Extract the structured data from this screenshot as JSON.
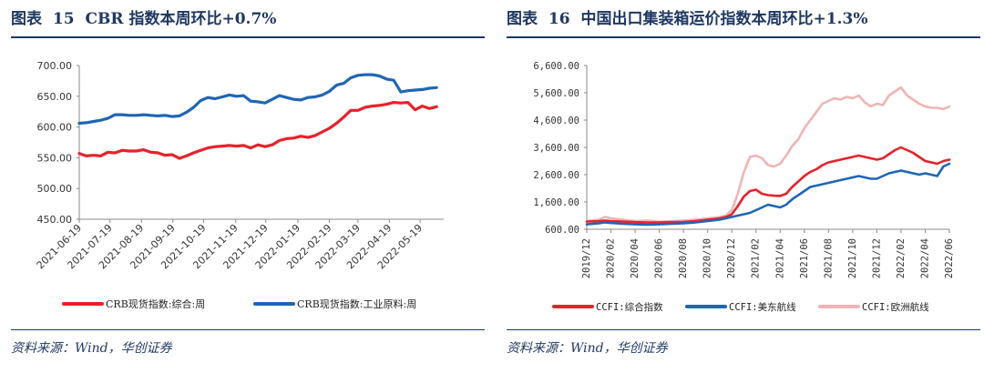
{
  "left": {
    "fig_label": "图表",
    "fig_num": "15",
    "title": "CBR 指数本周环比+0.7%",
    "source": "资料来源：Wind，华创证券",
    "chart_data": {
      "type": "line",
      "ylim": [
        450,
        700
      ],
      "yticks": [
        "450.00",
        "500.00",
        "550.00",
        "600.00",
        "650.00",
        "700.00"
      ],
      "xlim": [
        0,
        51
      ],
      "xticks": [
        {
          "label": "2021-06-19",
          "x": 0
        },
        {
          "label": "2021-07-19",
          "x": 4.3
        },
        {
          "label": "2021-08-19",
          "x": 8.7
        },
        {
          "label": "2021-09-19",
          "x": 13.1
        },
        {
          "label": "2021-10-19",
          "x": 17.4
        },
        {
          "label": "2021-11-19",
          "x": 21.9
        },
        {
          "label": "2021-12-19",
          "x": 26.1
        },
        {
          "label": "2022-01-19",
          "x": 30.6
        },
        {
          "label": "2022-02-19",
          "x": 35
        },
        {
          "label": "2022-03-19",
          "x": 39
        },
        {
          "label": "2022-04-19",
          "x": 43.4
        },
        {
          "label": "2022-05-19",
          "x": 47.7
        }
      ],
      "series": [
        {
          "name": "CRB现货指数:综合:周",
          "color": "#e8212a",
          "values": [
            557,
            553,
            554,
            553,
            559,
            558,
            562,
            561,
            561,
            563,
            559,
            558,
            554,
            555,
            549,
            553,
            558,
            562,
            566,
            568,
            569,
            570,
            569,
            570,
            566,
            571,
            568,
            571,
            578,
            581,
            582,
            585,
            583,
            586,
            592,
            598,
            606,
            616,
            627,
            627,
            632,
            634,
            635,
            637,
            640,
            639,
            640,
            628,
            634,
            630,
            633
          ]
        },
        {
          "name": "CRB现货指数:工业原料:周",
          "color": "#1f66b5",
          "values": [
            606,
            607,
            609,
            611,
            614,
            620,
            620,
            619,
            619,
            620,
            619,
            618,
            619,
            617,
            618,
            624,
            632,
            643,
            648,
            646,
            649,
            652,
            650,
            651,
            642,
            641,
            639,
            645,
            651,
            648,
            645,
            644,
            648,
            649,
            652,
            658,
            668,
            671,
            680,
            684,
            685,
            685,
            683,
            678,
            676,
            657,
            659,
            660,
            661,
            663,
            664
          ]
        }
      ]
    },
    "legend": [
      {
        "label": "CRB现货指数:综合:周",
        "color": "#e8212a"
      },
      {
        "label": "CRB现货指数:工业原料:周",
        "color": "#1f66b5"
      }
    ]
  },
  "right": {
    "fig_label": "图表",
    "fig_num": "16",
    "title": "中国出口集装箱运价指数本周环比+1.3%",
    "source": "资料来源：Wind，华创证券",
    "chart_data": {
      "type": "line",
      "ylim": [
        600,
        6600
      ],
      "yticks": [
        "600.00",
        "1,600.00",
        "2,600.00",
        "3,600.00",
        "4,600.00",
        "5,600.00",
        "6,600.00"
      ],
      "xlim": [
        0,
        30
      ],
      "xticks": [
        {
          "label": "2019/12",
          "x": 0
        },
        {
          "label": "2020/02",
          "x": 2
        },
        {
          "label": "2020/04",
          "x": 4
        },
        {
          "label": "2020/06",
          "x": 6
        },
        {
          "label": "2020/08",
          "x": 8
        },
        {
          "label": "2020/10",
          "x": 10
        },
        {
          "label": "2020/12",
          "x": 12
        },
        {
          "label": "2021/02",
          "x": 14
        },
        {
          "label": "2021/04",
          "x": 16
        },
        {
          "label": "2021/06",
          "x": 18
        },
        {
          "label": "2021/08",
          "x": 20
        },
        {
          "label": "2021/10",
          "x": 22
        },
        {
          "label": "2021/12",
          "x": 24
        },
        {
          "label": "2022/02",
          "x": 26
        },
        {
          "label": "2022/04",
          "x": 28
        },
        {
          "label": "2022/06",
          "x": 30
        }
      ],
      "series": [
        {
          "name": "CCFI:欧洲航线",
          "color": "#f0b4b4",
          "x": [
            0,
            1,
            1.5,
            2,
            3,
            4,
            5,
            6,
            7,
            8,
            9,
            10,
            11,
            11.5,
            12,
            12.5,
            13,
            13.5,
            14,
            14.5,
            15,
            15.5,
            16,
            16.5,
            17,
            17.5,
            18,
            18.5,
            19,
            19.5,
            20,
            20.5,
            21,
            21.5,
            22,
            22.5,
            23,
            23.5,
            24,
            24.5,
            25,
            25.5,
            26,
            26.5,
            27,
            27.5,
            28,
            28.5,
            29,
            29.5,
            30
          ],
          "values": [
            900,
            950,
            1050,
            1000,
            950,
            900,
            920,
            880,
            900,
            920,
            950,
            1000,
            1050,
            1100,
            1300,
            1900,
            2700,
            3250,
            3300,
            3200,
            2950,
            2900,
            3000,
            3300,
            3650,
            3900,
            4300,
            4600,
            4900,
            5200,
            5300,
            5400,
            5350,
            5450,
            5400,
            5500,
            5250,
            5100,
            5200,
            5150,
            5500,
            5650,
            5800,
            5500,
            5350,
            5200,
            5100,
            5050,
            5050,
            5000,
            5100
          ]
        },
        {
          "name": "CCFI:综合指数",
          "color": "#e8212a",
          "x": [
            0,
            1,
            1.5,
            2,
            3,
            4,
            5,
            6,
            7,
            8,
            9,
            10,
            11,
            11.5,
            12,
            12.5,
            13,
            13.5,
            14,
            14.5,
            15,
            15.5,
            16,
            16.5,
            17,
            17.5,
            18,
            18.5,
            19,
            19.5,
            20,
            20.5,
            21,
            21.5,
            22,
            22.5,
            23,
            23.5,
            24,
            24.5,
            25,
            25.5,
            26,
            26.5,
            27,
            27.5,
            28,
            28.5,
            29,
            29.5,
            30
          ],
          "values": [
            880,
            900,
            920,
            900,
            880,
            860,
            850,
            850,
            860,
            870,
            900,
            950,
            1000,
            1050,
            1150,
            1450,
            1800,
            2000,
            2050,
            1900,
            1850,
            1830,
            1820,
            1900,
            2150,
            2350,
            2550,
            2700,
            2800,
            2950,
            3050,
            3100,
            3150,
            3200,
            3250,
            3300,
            3250,
            3200,
            3150,
            3200,
            3350,
            3500,
            3600,
            3500,
            3400,
            3250,
            3100,
            3050,
            3000,
            3100,
            3150
          ]
        },
        {
          "name": "CCFI:美东航线",
          "color": "#1f66b5",
          "x": [
            0,
            1,
            1.5,
            2,
            3,
            4,
            5,
            6,
            7,
            8,
            9,
            10,
            11,
            11.5,
            12,
            12.5,
            13,
            13.5,
            14,
            14.5,
            15,
            15.5,
            16,
            16.5,
            17,
            17.5,
            18,
            18.5,
            19,
            19.5,
            20,
            20.5,
            21,
            21.5,
            22,
            22.5,
            23,
            23.5,
            24,
            24.5,
            25,
            25.5,
            26,
            26.5,
            27,
            27.5,
            28,
            28.5,
            29,
            29.5,
            30
          ],
          "values": [
            780,
            820,
            850,
            830,
            800,
            780,
            770,
            780,
            800,
            820,
            850,
            900,
            950,
            1000,
            1050,
            1100,
            1150,
            1200,
            1300,
            1400,
            1500,
            1450,
            1400,
            1500,
            1700,
            1850,
            2000,
            2150,
            2200,
            2250,
            2300,
            2350,
            2400,
            2450,
            2500,
            2550,
            2500,
            2450,
            2450,
            2550,
            2650,
            2700,
            2750,
            2700,
            2650,
            2600,
            2650,
            2600,
            2550,
            2900,
            3000
          ]
        }
      ]
    },
    "legend": [
      {
        "label": "CCFI:综合指数",
        "color": "#e8212a"
      },
      {
        "label": "CCFI:美东航线",
        "color": "#1f66b5"
      },
      {
        "label": "CCFI:欧洲航线",
        "color": "#f0b4b4"
      }
    ]
  }
}
